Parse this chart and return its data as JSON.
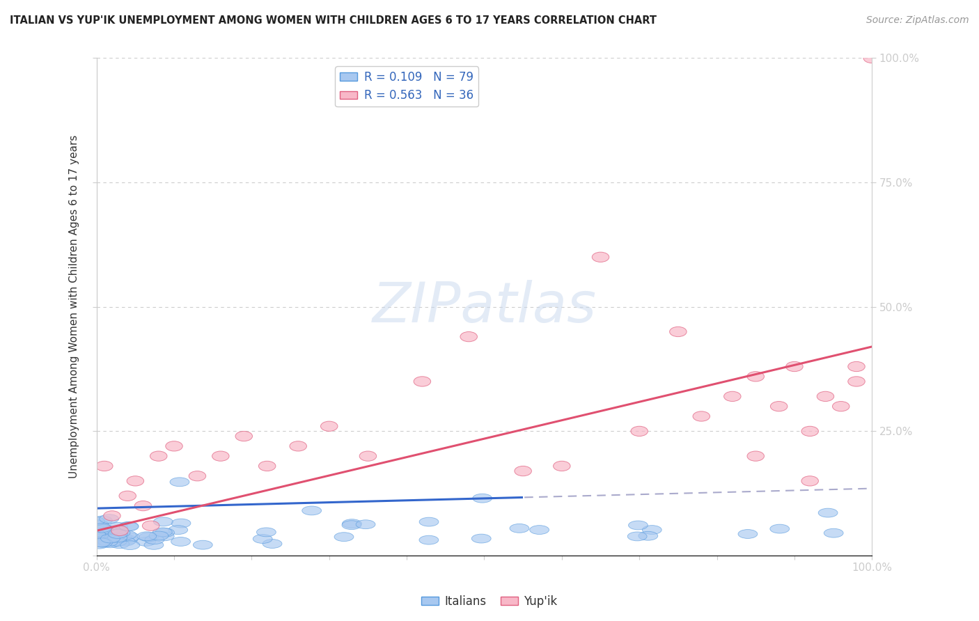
{
  "title": "ITALIAN VS YUP'IK UNEMPLOYMENT AMONG WOMEN WITH CHILDREN AGES 6 TO 17 YEARS CORRELATION CHART",
  "source": "Source: ZipAtlas.com",
  "ylabel": "Unemployment Among Women with Children Ages 6 to 17 years",
  "xlim": [
    0,
    1
  ],
  "ylim": [
    0,
    1
  ],
  "italian_fill_color": "#a8c8f0",
  "italian_edge_color": "#5599dd",
  "yupik_fill_color": "#f8b8c8",
  "yupik_edge_color": "#e06080",
  "italian_line_color": "#3366cc",
  "yupik_line_color": "#e05070",
  "dashed_line_color": "#aaaacc",
  "legend_text_color": "#3366bb",
  "background_color": "#ffffff",
  "grid_color": "#cccccc",
  "watermark_color": "#c8d8ee",
  "italian_R": 0.109,
  "italian_N": 79,
  "yupik_R": 0.563,
  "yupik_N": 36,
  "watermark": "ZIPatlas",
  "it_line_y0": 0.095,
  "it_line_y1": 0.135,
  "it_line_x_solid_end": 0.55,
  "yp_line_y0": 0.05,
  "yp_line_y1": 0.42
}
